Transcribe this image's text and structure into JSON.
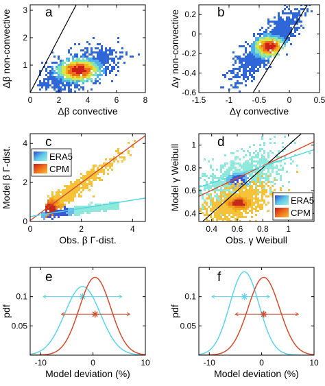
{
  "chart_data": [
    {
      "panel": "a",
      "type": "heatmap",
      "xlabel": "Δβ convective",
      "ylabel": "Δβ non-convective",
      "xlim": [
        0,
        8
      ],
      "ylim": [
        0,
        3.2
      ],
      "xticks": [
        0,
        2,
        4,
        6,
        8
      ],
      "yticks": [
        1,
        2,
        3
      ],
      "reference_line": "1:1",
      "density_center": [
        3.3,
        0.8
      ]
    },
    {
      "panel": "b",
      "type": "heatmap",
      "xlabel": "Δγ convective",
      "ylabel": "Δγ non-convective",
      "xlim": [
        -1.5,
        0.5
      ],
      "ylim": [
        -0.6,
        0.3
      ],
      "xticks": [
        -1.5,
        -1,
        -0.5,
        0,
        0.5
      ],
      "yticks": [
        -0.6,
        -0.4,
        -0.2,
        0,
        0.2
      ],
      "xtick_labels": [
        "-1.5",
        "-1",
        "-0.5",
        "0",
        "0.5"
      ],
      "ytick_labels": [
        "-0.6",
        "-0.4",
        "-0.2",
        "0",
        "0.2"
      ],
      "reference_line": "1:1",
      "density_center": [
        -0.38,
        -0.1
      ]
    },
    {
      "panel": "c",
      "type": "heatmap",
      "xlabel": "Obs. β Γ-dist.",
      "ylabel": "Model β Γ-dist.",
      "xlim": [
        0,
        4.5
      ],
      "ylim": [
        0,
        4.5
      ],
      "xticks": [
        0,
        2,
        4
      ],
      "yticks": [
        0,
        2,
        4
      ],
      "legend": [
        "ERA5",
        "CPM"
      ],
      "legend_position": "top-left",
      "fit_lines": [
        {
          "series": "CPM",
          "x": [
            0,
            4.5
          ],
          "y": [
            0.05,
            4.4
          ]
        },
        {
          "series": "ERA5",
          "x": [
            0,
            4.5
          ],
          "y": [
            0.25,
            1.2
          ]
        }
      ],
      "series_colors": {
        "ERA5": "#4fd6e0",
        "CPM": "#d24a2a"
      }
    },
    {
      "panel": "d",
      "type": "heatmap",
      "xlabel": "Obs. γ Weibull",
      "ylabel": "Model γ Weibull",
      "xlim": [
        0.3,
        1.2
      ],
      "ylim": [
        0.33,
        1.1
      ],
      "xticks": [
        0.4,
        0.6,
        0.8,
        1
      ],
      "yticks": [
        0.4,
        0.6,
        0.8,
        1
      ],
      "xtick_labels": [
        "0.4",
        "0.6",
        "0.8",
        "1"
      ],
      "ytick_labels": [
        "0.4",
        "0.6",
        "0.8",
        "1"
      ],
      "legend": [
        "ERA5",
        "CPM"
      ],
      "legend_position": "bottom-right",
      "reference_line": "1:1",
      "fit_lines": [
        {
          "series": "CPM",
          "x": [
            0.3,
            1.2
          ],
          "y": [
            0.55,
            1.03
          ]
        },
        {
          "series": "ERA5",
          "x": [
            0.3,
            1.2
          ],
          "y": [
            0.63,
            0.96
          ]
        }
      ],
      "series_colors": {
        "ERA5": "#4fd6e0",
        "CPM": "#d24a2a"
      }
    },
    {
      "panel": "e",
      "type": "line",
      "xlabel": "Model deviation (%)",
      "ylabel": "pdf",
      "xlim": [
        -12,
        10
      ],
      "ylim": [
        0,
        0.15
      ],
      "xticks": [
        -10,
        0,
        10
      ],
      "yticks": [
        0.05,
        0.1
      ],
      "ytick_labels": [
        "0.05",
        "0.1"
      ],
      "series": [
        {
          "color": "#5bd3e8",
          "mean": -2.0,
          "std": 3.4,
          "ci": [
            -9.5,
            5.5
          ]
        },
        {
          "color": "#d2492a",
          "mean": 0.4,
          "std": 3.0,
          "ci": [
            -6.0,
            7.0
          ]
        }
      ]
    },
    {
      "panel": "f",
      "type": "line",
      "xlabel": "Model deviation (%)",
      "ylabel": "pdf",
      "xlim": [
        -12,
        10
      ],
      "ylim": [
        0,
        0.15
      ],
      "xticks": [
        -10,
        0,
        10
      ],
      "yticks": [
        0.05,
        0.1
      ],
      "ytick_labels": [
        "0.05",
        "0.1"
      ],
      "series": [
        {
          "color": "#5bd3e8",
          "mean": -3.3,
          "std": 2.8,
          "ci": [
            -9.5,
            1.5
          ]
        },
        {
          "color": "#d2492a",
          "mean": 0.4,
          "std": 3.0,
          "ci": [
            -5.0,
            7.0
          ]
        }
      ]
    }
  ]
}
